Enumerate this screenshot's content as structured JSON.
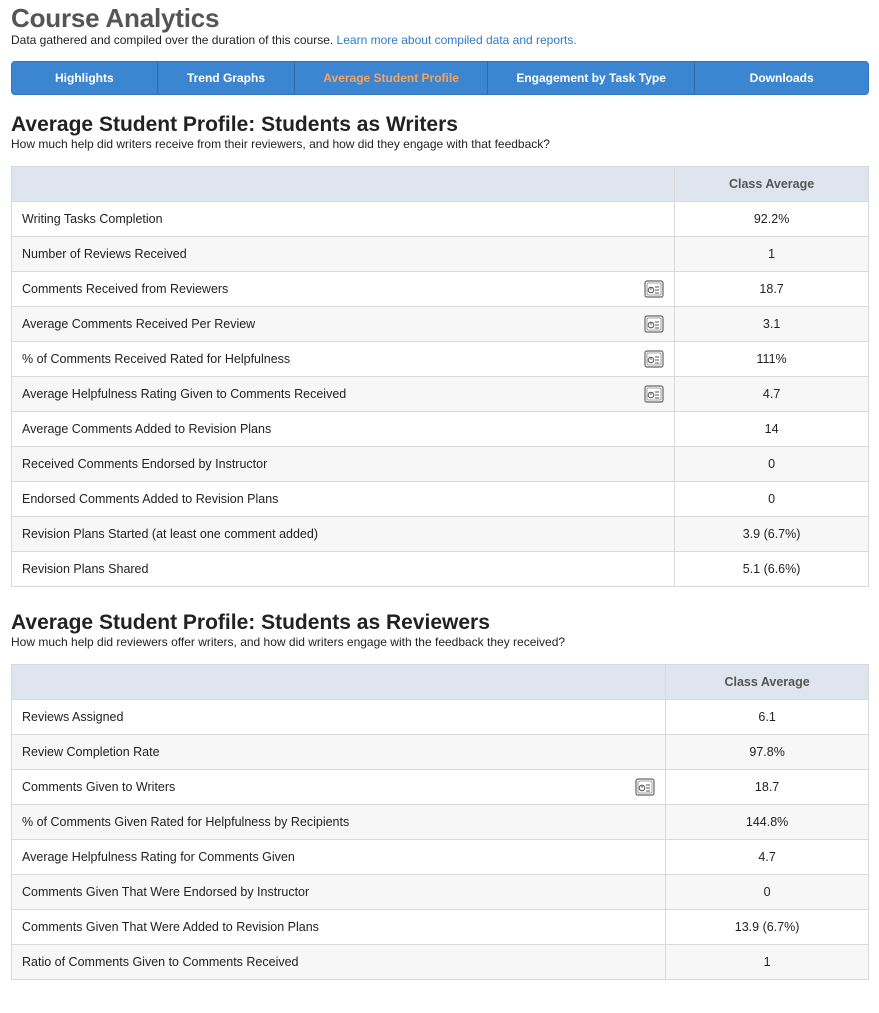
{
  "header": {
    "title": "Course Analytics",
    "subtitle": "Data gathered and compiled over the duration of this course.",
    "learn_more": "Learn more about compiled data and reports."
  },
  "tabs": [
    {
      "label": "Highlights",
      "active": false
    },
    {
      "label": "Trend Graphs",
      "active": false
    },
    {
      "label": "Average Student Profile",
      "active": true
    },
    {
      "label": "Engagement by Task Type",
      "active": false
    },
    {
      "label": "Downloads",
      "active": false
    }
  ],
  "writers": {
    "title": "Average Student Profile: Students as Writers",
    "subtitle": "How much help did writers receive from their reviewers, and how did they engage with that feedback?",
    "column_header": "Class Average",
    "rows": [
      {
        "label": "Writing Tasks Completion",
        "value": "92.2%",
        "icon": ""
      },
      {
        "label": "Number of Reviews Received",
        "value": "1",
        "icon": ""
      },
      {
        "label": "Comments Received from Reviewers",
        "value": "18.7",
        "icon": "report-icon"
      },
      {
        "label": "Average Comments Received Per Review",
        "value": "3.1",
        "icon": "report-icon"
      },
      {
        "label": "% of Comments Received Rated for Helpfulness",
        "value": "111%",
        "icon": "report-icon"
      },
      {
        "label": "Average Helpfulness Rating Given to Comments Received",
        "value": "4.7",
        "icon": "report-icon"
      },
      {
        "label": "Average Comments Added to Revision Plans",
        "value": "14",
        "icon": ""
      },
      {
        "label": "Received Comments Endorsed by Instructor",
        "value": "0",
        "icon": ""
      },
      {
        "label": "Endorsed Comments Added to Revision Plans",
        "value": "0",
        "icon": ""
      },
      {
        "label": "Revision Plans Started (at least one comment added)",
        "value": "3.9 (6.7%)",
        "icon": ""
      },
      {
        "label": "Revision Plans Shared",
        "value": "5.1 (6.6%)",
        "icon": ""
      }
    ]
  },
  "reviewers": {
    "title": "Average Student Profile: Students as Reviewers",
    "subtitle": "How much help did reviewers offer writers, and how did writers engage with the feedback they received?",
    "column_header": "Class Average",
    "rows": [
      {
        "label": "Reviews Assigned",
        "value": "6.1",
        "icon": ""
      },
      {
        "label": "Review Completion Rate",
        "value": "97.8%",
        "icon": ""
      },
      {
        "label": "Comments Given to Writers",
        "value": "18.7",
        "icon": "report-icon"
      },
      {
        "label": "% of Comments Given Rated for Helpfulness by Recipients",
        "value": "144.8%",
        "icon": ""
      },
      {
        "label": "Average Helpfulness Rating for Comments Given",
        "value": "4.7",
        "icon": ""
      },
      {
        "label": "Comments Given That Were Endorsed by Instructor",
        "value": "0",
        "icon": ""
      },
      {
        "label": "Comments Given That Were Added to Revision Plans",
        "value": "13.9 (6.7%)",
        "icon": ""
      },
      {
        "label": "Ratio of Comments Given to Comments Received",
        "value": "1",
        "icon": ""
      }
    ]
  }
}
